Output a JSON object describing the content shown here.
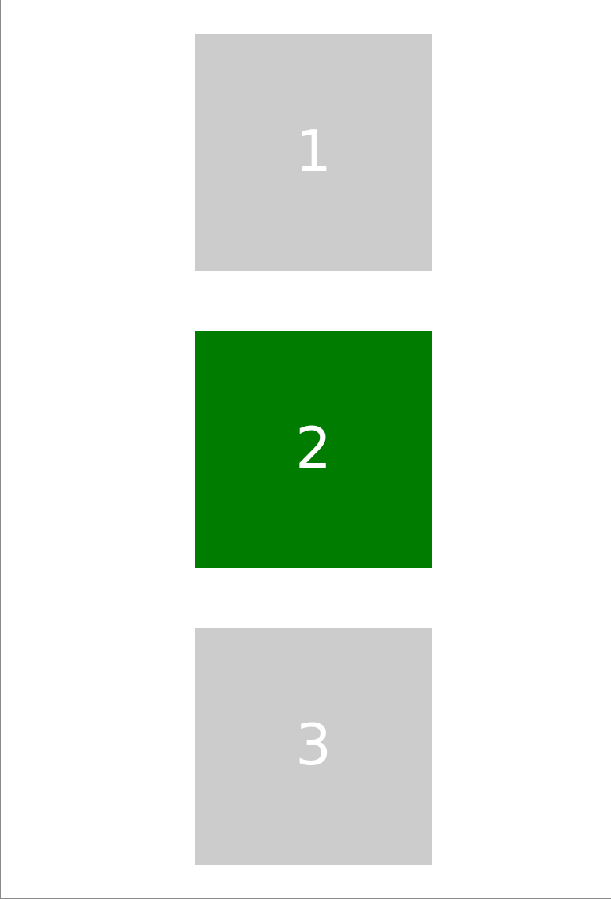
{
  "tiles": [
    {
      "label": "1",
      "color": "#cccccc",
      "selected": false
    },
    {
      "label": "2",
      "color": "#007c00",
      "selected": true
    },
    {
      "label": "3",
      "color": "#cccccc",
      "selected": false
    }
  ]
}
